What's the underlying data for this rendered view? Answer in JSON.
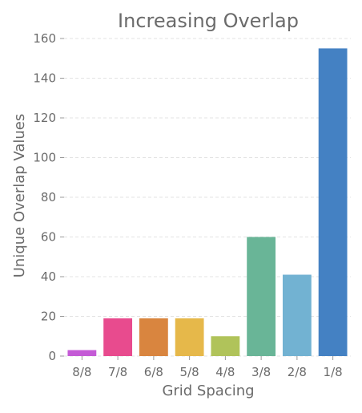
{
  "chart_data": {
    "type": "bar",
    "title": "Increasing Overlap",
    "xlabel": "Grid Spacing",
    "ylabel": "Unique Overlap Values",
    "categories": [
      "8/8",
      "7/8",
      "6/8",
      "5/8",
      "4/8",
      "3/8",
      "2/8",
      "1/8"
    ],
    "values": [
      3,
      19,
      19,
      19,
      10,
      60,
      41,
      155
    ],
    "colors": [
      "#c45bd6",
      "#e84b8e",
      "#d9853f",
      "#e6b84a",
      "#b0c35a",
      "#69b597",
      "#72b2d2",
      "#4481c3"
    ],
    "ylim": [
      0,
      160
    ],
    "yticks": [
      0,
      20,
      40,
      60,
      80,
      100,
      120,
      140,
      160
    ],
    "grid": true,
    "legend": false
  }
}
